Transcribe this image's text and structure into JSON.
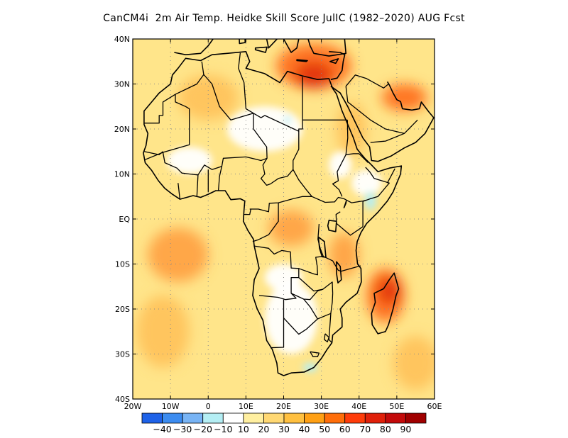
{
  "title": "CanCM4i  2m Air Temp. Heidke Skill Score JulIC (1982–2020) AUG Fcst",
  "map": {
    "lon_range": [
      -20,
      60
    ],
    "lat_range": [
      -40,
      40
    ],
    "lon_ticks": [
      {
        "value": -20,
        "label": "20W"
      },
      {
        "value": -10,
        "label": "10W"
      },
      {
        "value": 0,
        "label": "0"
      },
      {
        "value": 10,
        "label": "10E"
      },
      {
        "value": 20,
        "label": "20E"
      },
      {
        "value": 30,
        "label": "30E"
      },
      {
        "value": 40,
        "label": "40E"
      },
      {
        "value": 50,
        "label": "50E"
      },
      {
        "value": 60,
        "label": "60E"
      }
    ],
    "lat_ticks": [
      {
        "value": 40,
        "label": "40N"
      },
      {
        "value": 30,
        "label": "30N"
      },
      {
        "value": 20,
        "label": "20N"
      },
      {
        "value": 10,
        "label": "10N"
      },
      {
        "value": 0,
        "label": "EQ"
      },
      {
        "value": -10,
        "label": "10S"
      },
      {
        "value": -20,
        "label": "20S"
      },
      {
        "value": -30,
        "label": "30S"
      },
      {
        "value": -40,
        "label": "40S"
      }
    ],
    "gridlines": "dotted",
    "base_field_color": "#ffe58a",
    "skill_regions": [
      {
        "name": "Mediterranean / North Egypt",
        "center": [
          28,
          34
        ],
        "radius": [
          10,
          5
        ],
        "level": 60,
        "color": "#ff6a1a"
      },
      {
        "name": "Nile delta core",
        "center": [
          28,
          32
        ],
        "radius": [
          5,
          3
        ],
        "level": 70,
        "color": "#e0300d"
      },
      {
        "name": "Arabian Gulf",
        "center": [
          52,
          27
        ],
        "radius": [
          6,
          3
        ],
        "level": 60,
        "color": "#ff6a1a"
      },
      {
        "name": "Madagascar",
        "center": [
          47,
          -17
        ],
        "radius": [
          5,
          6
        ],
        "level": 60,
        "color": "#ff6a1a"
      },
      {
        "name": "Madagascar core",
        "center": [
          48,
          -16
        ],
        "radius": [
          3,
          3
        ],
        "level": 70,
        "color": "#e0300d"
      },
      {
        "name": "Tropical Atlantic",
        "center": [
          -8,
          -8
        ],
        "radius": [
          8,
          6
        ],
        "level": 50,
        "color": "#ffa040"
      },
      {
        "name": "West-central Africa",
        "center": [
          22,
          -2
        ],
        "radius": [
          6,
          4
        ],
        "level": 50,
        "color": "#ffa040"
      },
      {
        "name": "Western Sahara",
        "center": [
          0,
          27
        ],
        "radius": [
          8,
          5
        ],
        "level": 40,
        "color": "#ffc15a"
      },
      {
        "name": "Red Sea",
        "center": [
          38,
          20
        ],
        "radius": [
          4,
          6
        ],
        "level": 40,
        "color": "#ffc15a"
      },
      {
        "name": "East Africa",
        "center": [
          36,
          -8
        ],
        "radius": [
          4,
          5
        ],
        "level": 50,
        "color": "#ffa040"
      },
      {
        "name": "South Atlantic",
        "center": [
          -12,
          -25
        ],
        "radius": [
          7,
          8
        ],
        "level": 40,
        "color": "#ffc15a"
      },
      {
        "name": "Indian Ocean",
        "center": [
          55,
          -32
        ],
        "radius": [
          6,
          6
        ],
        "level": 40,
        "color": "#ffc15a"
      }
    ],
    "low_skill_regions": [
      {
        "name": "Central Sahara",
        "center": [
          15,
          20
        ],
        "radius": [
          10,
          5
        ],
        "level": 10
      },
      {
        "name": "Sahel west",
        "center": [
          -5,
          13
        ],
        "radius": [
          6,
          3
        ],
        "level": 10
      },
      {
        "name": "Southern Africa",
        "center": [
          22,
          -22
        ],
        "radius": [
          7,
          8
        ],
        "level": 10
      },
      {
        "name": "Horn of Africa",
        "center": [
          42,
          8
        ],
        "radius": [
          4,
          3
        ],
        "level": 10
      },
      {
        "name": "Zambia / Angola",
        "center": [
          20,
          -13
        ],
        "radius": [
          5,
          3
        ],
        "level": 10
      },
      {
        "name": "Ethiopia",
        "center": [
          35,
          12
        ],
        "radius": [
          3,
          3
        ],
        "level": 10
      }
    ],
    "negative_regions": [
      {
        "name": "Somalia",
        "center": [
          43,
          4
        ],
        "radius": [
          1.5,
          2
        ],
        "level": -10,
        "color": "#b4eef4"
      },
      {
        "name": "South Africa coast",
        "center": [
          27,
          -33
        ],
        "radius": [
          2,
          1
        ],
        "level": -10,
        "color": "#b4eef4"
      },
      {
        "name": "Libya spot",
        "center": [
          21,
          22
        ],
        "radius": [
          0.8,
          0.8
        ],
        "level": -10,
        "color": "#b4eef4"
      }
    ]
  },
  "colorbar": {
    "bins": [
      {
        "color": "#1e62e8"
      },
      {
        "color": "#3c8cf0"
      },
      {
        "color": "#78b4f5"
      },
      {
        "color": "#b4eef4"
      },
      {
        "color": "#ffffff"
      },
      {
        "color": "#ffefa0"
      },
      {
        "color": "#ffd873"
      },
      {
        "color": "#ffc040"
      },
      {
        "color": "#ffa014"
      },
      {
        "color": "#ff6e0a"
      },
      {
        "color": "#ff3c0a"
      },
      {
        "color": "#e0200a"
      },
      {
        "color": "#c30a0a"
      },
      {
        "color": "#a00000"
      }
    ],
    "labels": [
      "-40",
      "-30",
      "-20",
      "-10",
      "10",
      "20",
      "30",
      "40",
      "50",
      "60",
      "70",
      "80",
      "90"
    ]
  }
}
